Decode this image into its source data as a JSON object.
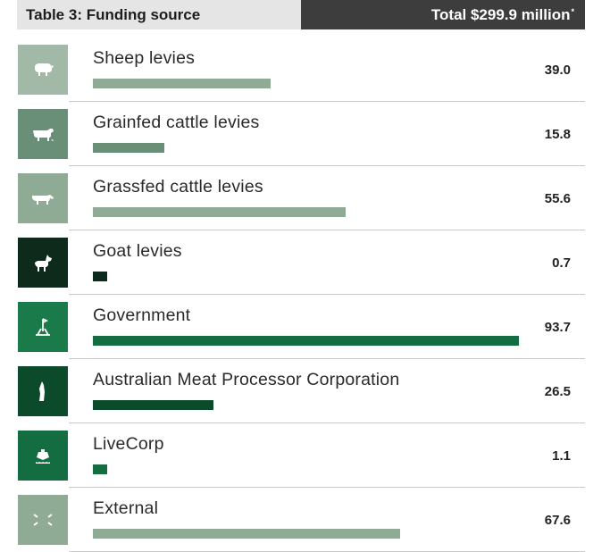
{
  "header": {
    "title": "Table 3: Funding source",
    "total": "Total $299.9 million",
    "total_mark": "*"
  },
  "chart_data": {
    "type": "bar",
    "categories": [
      "Sheep levies",
      "Grainfed cattle levies",
      "Grassfed cattle levies",
      "Goat levies",
      "Government",
      "Australian Meat Processor Corporation",
      "LiveCorp",
      "External"
    ],
    "values": [
      39.0,
      15.8,
      55.6,
      0.7,
      93.7,
      26.5,
      1.1,
      67.6
    ],
    "value_labels": [
      "39.0",
      "15.8",
      "55.6",
      "0.7",
      "93.7",
      "26.5",
      "1.1",
      "67.6"
    ],
    "icons": [
      "sheep-icon",
      "cattle-icon",
      "cow-icon",
      "goat-icon",
      "government-icon",
      "meat-processor-icon",
      "ship-icon",
      "external-icon"
    ],
    "icon_colors": [
      "#a3b9a8",
      "#6a8f78",
      "#8fab96",
      "#0e2a1b",
      "#1a7a4a",
      "#0b4a2a",
      "#146d41",
      "#8fab96"
    ],
    "bar_colors": [
      "#8fab96",
      "#6a8f78",
      "#8fab96",
      "#0e2a1b",
      "#146d41",
      "#0b4a2a",
      "#146d41",
      "#8fab96"
    ],
    "xlim": [
      0,
      93.7
    ]
  }
}
